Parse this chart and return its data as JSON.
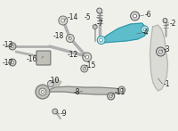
{
  "bg_color": "#f0f0eb",
  "part_color_highlight": "#4db8c8",
  "part_color_gray": "#b0b0b0",
  "part_color_dark": "#707070",
  "line_color": "#555555",
  "label_color": "#222222",
  "font_size": 5.5,
  "fig_width": 2.0,
  "fig_height": 1.47,
  "dpi": 100
}
